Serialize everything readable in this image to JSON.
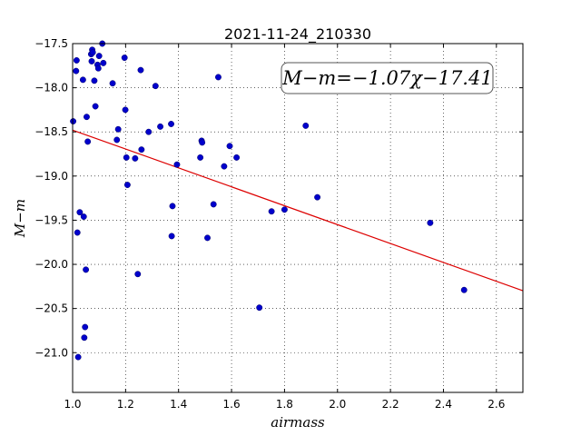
{
  "chart_data": {
    "type": "scatter",
    "title": "2021-11-24_210330",
    "xlabel": "airmass",
    "ylabel": "M−m",
    "xlim": [
      1.0,
      2.7
    ],
    "ylim": [
      -21.45,
      -17.5
    ],
    "y_inverted": true,
    "grid": true,
    "x_ticks": [
      1.0,
      1.2,
      1.4,
      1.6,
      1.8,
      2.0,
      2.2,
      2.4,
      2.6
    ],
    "x_tick_labels": [
      "1.0",
      "1.2",
      "1.4",
      "1.6",
      "1.8",
      "2.0",
      "2.2",
      "2.4",
      "2.6"
    ],
    "y_ticks": [
      -17.5,
      -18.0,
      -18.5,
      -19.0,
      -19.5,
      -20.0,
      -20.5,
      -21.0
    ],
    "y_tick_labels": [
      "−17.5",
      "−18.0",
      "−18.5",
      "−19.0",
      "−19.5",
      "−20.0",
      "−20.5",
      "−21.0"
    ],
    "annotation": "M−m=−1.07χ−17.41",
    "point_color": "#0000cc",
    "fit_color": "#dd0000",
    "fit_line": {
      "slope": -1.07,
      "intercept": -17.41
    },
    "points": [
      [
        1.002,
        -18.38
      ],
      [
        1.013,
        -17.81
      ],
      [
        1.015,
        -17.69
      ],
      [
        1.018,
        -19.64
      ],
      [
        1.021,
        -21.05
      ],
      [
        1.027,
        -19.41
      ],
      [
        1.039,
        -17.91
      ],
      [
        1.042,
        -19.46
      ],
      [
        1.044,
        -20.83
      ],
      [
        1.047,
        -20.71
      ],
      [
        1.05,
        -20.06
      ],
      [
        1.053,
        -18.33
      ],
      [
        1.057,
        -18.61
      ],
      [
        1.07,
        -17.62
      ],
      [
        1.072,
        -17.7
      ],
      [
        1.074,
        -17.57
      ],
      [
        1.076,
        -17.6
      ],
      [
        1.082,
        -17.92
      ],
      [
        1.086,
        -18.21
      ],
      [
        1.094,
        -17.74
      ],
      [
        1.097,
        -17.78
      ],
      [
        1.1,
        -17.64
      ],
      [
        1.112,
        -17.5
      ],
      [
        1.116,
        -17.72
      ],
      [
        1.151,
        -17.95
      ],
      [
        1.167,
        -18.59
      ],
      [
        1.172,
        -18.47
      ],
      [
        1.196,
        -17.66
      ],
      [
        1.199,
        -18.25
      ],
      [
        1.203,
        -18.79
      ],
      [
        1.207,
        -19.1
      ],
      [
        1.236,
        -18.8
      ],
      [
        1.246,
        -20.11
      ],
      [
        1.257,
        -17.8
      ],
      [
        1.26,
        -18.7
      ],
      [
        1.287,
        -18.5
      ],
      [
        1.313,
        -17.98
      ],
      [
        1.331,
        -18.44
      ],
      [
        1.372,
        -18.41
      ],
      [
        1.374,
        -19.68
      ],
      [
        1.377,
        -19.34
      ],
      [
        1.394,
        -18.87
      ],
      [
        1.482,
        -18.79
      ],
      [
        1.487,
        -18.6
      ],
      [
        1.489,
        -18.62
      ],
      [
        1.509,
        -19.7
      ],
      [
        1.532,
        -19.32
      ],
      [
        1.55,
        -17.88
      ],
      [
        1.572,
        -18.89
      ],
      [
        1.593,
        -18.66
      ],
      [
        1.619,
        -18.79
      ],
      [
        1.705,
        -20.49
      ],
      [
        1.751,
        -19.4
      ],
      [
        1.8,
        -19.38
      ],
      [
        1.88,
        -18.43
      ],
      [
        1.924,
        -19.24
      ],
      [
        2.35,
        -19.53
      ],
      [
        2.478,
        -20.29
      ]
    ]
  }
}
